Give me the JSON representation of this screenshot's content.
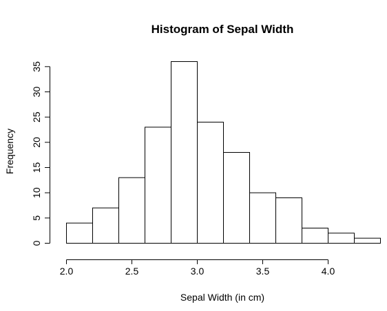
{
  "chart_data": {
    "type": "bar",
    "title": "Histogram of Sepal Width",
    "xlabel": "Sepal Width (in cm)",
    "ylabel": "Frequency",
    "bins": [
      {
        "start": 2.0,
        "end": 2.2,
        "count": 4
      },
      {
        "start": 2.2,
        "end": 2.4,
        "count": 7
      },
      {
        "start": 2.4,
        "end": 2.6,
        "count": 13
      },
      {
        "start": 2.6,
        "end": 2.8,
        "count": 23
      },
      {
        "start": 2.8,
        "end": 3.0,
        "count": 36
      },
      {
        "start": 3.0,
        "end": 3.2,
        "count": 24
      },
      {
        "start": 3.2,
        "end": 3.4,
        "count": 18
      },
      {
        "start": 3.4,
        "end": 3.6,
        "count": 10
      },
      {
        "start": 3.6,
        "end": 3.8,
        "count": 9
      },
      {
        "start": 3.8,
        "end": 4.0,
        "count": 3
      },
      {
        "start": 4.0,
        "end": 4.2,
        "count": 2
      },
      {
        "start": 4.2,
        "end": 4.4,
        "count": 1
      }
    ],
    "xlim": [
      2.0,
      4.4
    ],
    "ylim": [
      0,
      36
    ],
    "x_ticks": [
      2.0,
      2.5,
      3.0,
      3.5,
      4.0
    ],
    "x_tick_labels": [
      "2.0",
      "2.5",
      "3.0",
      "3.5",
      "4.0"
    ],
    "y_ticks": [
      0,
      5,
      10,
      15,
      20,
      25,
      30,
      35
    ],
    "y_tick_labels": [
      "0",
      "5",
      "10",
      "15",
      "20",
      "25",
      "30",
      "35"
    ],
    "grid": false,
    "bar_fill": "#ffffff",
    "bar_stroke": "#000000"
  }
}
